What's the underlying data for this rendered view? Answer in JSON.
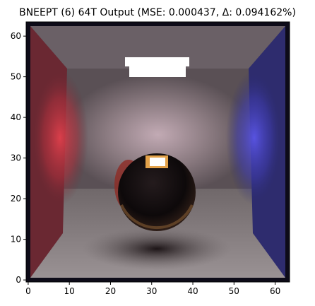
{
  "chart_data": {
    "type": "heatmap",
    "title": "BNEEPT (6) 64T Output (MSE: 0.000437, Δ: 0.094162%)",
    "xlabel": "",
    "ylabel": "",
    "xlim": [
      0,
      63
    ],
    "ylim": [
      0,
      63
    ],
    "grid": false,
    "resolution": [
      64,
      64
    ],
    "x_ticks": [
      "0",
      "10",
      "20",
      "30",
      "40",
      "50",
      "60"
    ],
    "y_ticks": [
      "0",
      "10",
      "20",
      "30",
      "40",
      "50",
      "60"
    ],
    "scene_colors": {
      "left_wall": "#8f2f3a",
      "right_wall": "#3e3b9a",
      "back_wall": "#6f6468",
      "ceiling": "#5a5258",
      "floor": "#8a8486",
      "light": "#ffffff",
      "sphere": "#151012",
      "shadow": "#2e2426",
      "border": "#0d0b18"
    }
  }
}
